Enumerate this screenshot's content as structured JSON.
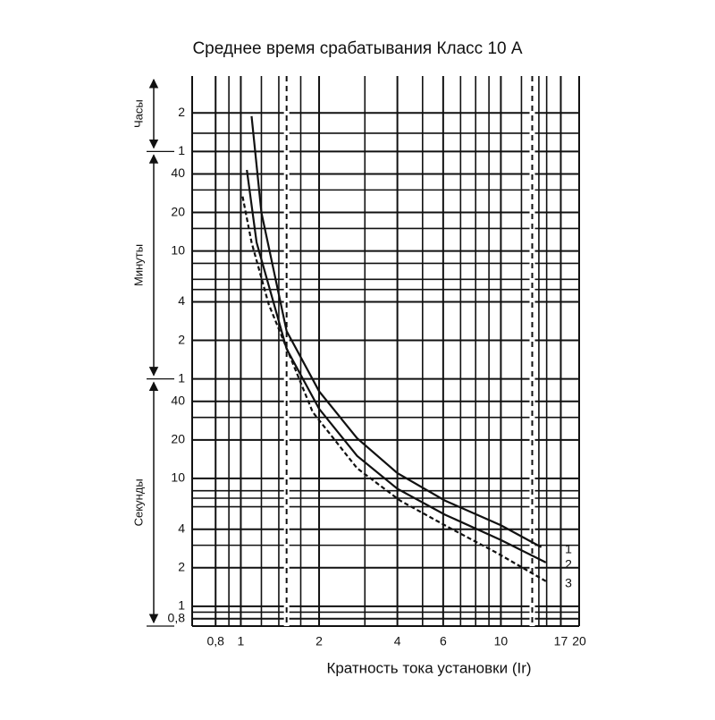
{
  "chart_data": {
    "type": "line",
    "title": "Среднее время срабатывания  Класс 10 А",
    "x_label": "Кратность тока установки (Ir)",
    "log_x": true,
    "log_y": true,
    "grid": true,
    "xlim": [
      0.65,
      20
    ],
    "ylim": [
      0.7,
      14000
    ],
    "xticks": [
      {
        "value": 0.8,
        "label": "0,8"
      },
      1,
      2,
      4,
      6,
      10,
      17,
      20
    ],
    "yticks": [
      {
        "value": 7200,
        "label": "2"
      },
      {
        "value": 3600,
        "label": "1"
      },
      {
        "value": 2400,
        "label": "40"
      },
      {
        "value": 1200,
        "label": "20"
      },
      {
        "value": 600,
        "label": "10"
      },
      {
        "value": 240,
        "label": "4"
      },
      {
        "value": 120,
        "label": "2"
      },
      {
        "value": 60,
        "label": "1"
      },
      40,
      20,
      10,
      4,
      2,
      1,
      {
        "value": 0.8,
        "label": "0,8"
      }
    ],
    "minor_xgrid": [
      0.9,
      1.2,
      1.4,
      1.7,
      3,
      5,
      7,
      8,
      9,
      12,
      14,
      15
    ],
    "minor_ygrid": [
      5000,
      1800,
      900,
      480,
      360,
      300,
      30,
      8,
      7,
      6,
      3,
      0.9
    ],
    "reference_lines_x": [
      1.5,
      13.2
    ],
    "time_spans": [
      {
        "label": "Часы",
        "from": 3600,
        "to": 14000
      },
      {
        "label": "Минуты",
        "from": 60,
        "to": 3600
      },
      {
        "label": "Секунды",
        "from": 0.7,
        "to": 60
      }
    ],
    "series": [
      {
        "name": "1",
        "color": "#111111",
        "style": "solid",
        "x": [
          1.1,
          1.2,
          1.5,
          2,
          2.8,
          4,
          6.1,
          10,
          14.3
        ],
        "values": [
          6800,
          1200,
          142,
          48,
          20.6,
          11,
          6.7,
          4.3,
          2.9
        ]
      },
      {
        "name": "2",
        "color": "#111111",
        "style": "solid",
        "x": [
          1.055,
          1.15,
          1.5,
          2,
          2.8,
          4,
          6.1,
          10,
          14.9
        ],
        "values": [
          2580,
          700,
          103,
          35,
          15,
          8.3,
          5.2,
          3.3,
          2.2
        ]
      },
      {
        "name": "3",
        "color": "#111111",
        "style": "dashed",
        "x": [
          1.016,
          1.1,
          1.28,
          1.89,
          2.8,
          4.1,
          6.5,
          9.7,
          14.9
        ],
        "values": [
          1600,
          700,
          230,
          33,
          12,
          6.7,
          4,
          2.6,
          1.57
        ]
      }
    ]
  }
}
